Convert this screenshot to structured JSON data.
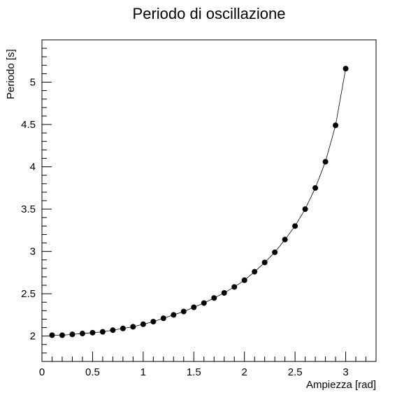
{
  "chart_data": {
    "type": "line",
    "title": "Periodo di oscillazione",
    "xlabel": "Ampiezza [rad]",
    "ylabel": "Periodo [s]",
    "xlim": [
      0,
      3.3
    ],
    "ylim": [
      1.7,
      5.5
    ],
    "x_ticks": [
      0,
      0.5,
      1,
      1.5,
      2,
      2.5,
      3
    ],
    "x_tick_labels": [
      "0",
      "0.5",
      "1",
      "1.5",
      "2",
      "2.5",
      "3"
    ],
    "y_ticks": [
      2,
      2.5,
      3,
      3.5,
      4,
      4.5,
      5
    ],
    "y_tick_labels": [
      "2",
      "2.5",
      "3",
      "3.5",
      "4",
      "4.5",
      "5"
    ],
    "grid": false,
    "markers": true,
    "x": [
      0.1,
      0.2,
      0.3,
      0.4,
      0.5,
      0.6,
      0.7,
      0.8,
      0.9,
      1.0,
      1.1,
      1.2,
      1.3,
      1.4,
      1.5,
      1.6,
      1.7,
      1.8,
      1.9,
      2.0,
      2.1,
      2.2,
      2.3,
      2.4,
      2.5,
      2.6,
      2.7,
      2.8,
      2.9,
      3.0
    ],
    "y": [
      2.01,
      2.01,
      2.02,
      2.03,
      2.04,
      2.05,
      2.07,
      2.09,
      2.11,
      2.14,
      2.17,
      2.21,
      2.25,
      2.29,
      2.34,
      2.39,
      2.45,
      2.51,
      2.58,
      2.66,
      2.76,
      2.87,
      2.99,
      3.14,
      3.3,
      3.5,
      3.75,
      4.06,
      4.49,
      5.16
    ]
  }
}
